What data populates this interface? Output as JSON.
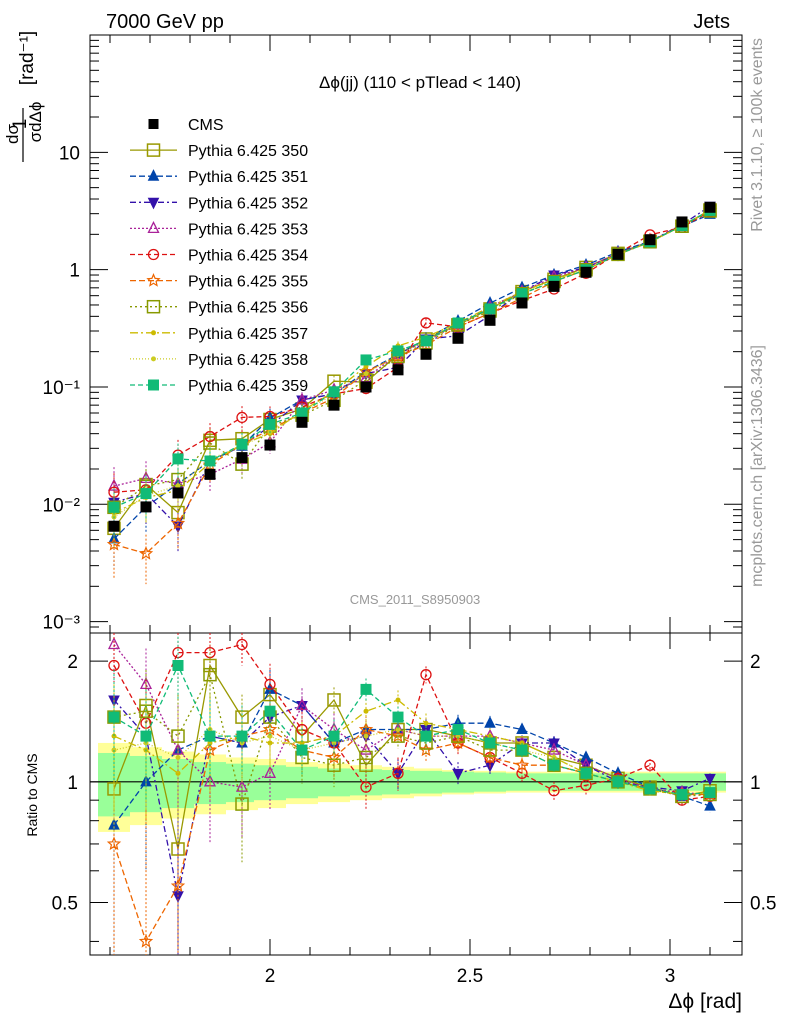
{
  "header": {
    "left": "7000 GeV pp",
    "right": "Jets"
  },
  "side_labels": {
    "rivet": "Rivet 3.1.10, ≥ 100k events",
    "mcplots": "mcplots.cern.ch [arXiv:1306.3436]"
  },
  "chart_data": {
    "type": "line",
    "title": "Δϕ(jj) (110 < pTlead <  140)",
    "analysis_label": "CMS_2011_S8950903",
    "xlabel": "Δϕ [rad]",
    "ylabel": "1/σ dσ/dΔϕ [rad⁻¹]",
    "ratio_ylabel": "Ratio to CMS",
    "xlim": [
      1.55,
      3.18
    ],
    "ylim_main": [
      0.0008,
      100
    ],
    "main_log_y": true,
    "ylim_ratio": [
      0.37,
      2.35
    ],
    "ratio_log_y": true,
    "x_ticks": [
      2,
      2.5,
      3
    ],
    "x_tick_labels": [
      "2",
      "2.5",
      "3"
    ],
    "main_y_ticks": [
      0.001,
      0.01,
      0.1,
      1,
      10
    ],
    "main_y_tick_labels": [
      "10⁻³",
      "10⁻²",
      "10⁻¹",
      "1",
      "10"
    ],
    "ratio_y_ticks": [
      0.5,
      1,
      2
    ],
    "ratio_y_tick_labels": [
      "0.5",
      "1",
      "2"
    ],
    "legend_position": "top-left",
    "x": [
      1.61,
      1.69,
      1.77,
      1.85,
      1.93,
      2.0,
      2.08,
      2.16,
      2.24,
      2.32,
      2.39,
      2.47,
      2.55,
      2.63,
      2.71,
      2.79,
      2.87,
      2.95,
      3.03,
      3.1
    ],
    "data": {
      "name": "CMS",
      "values": [
        0.0065,
        0.0095,
        0.0125,
        0.018,
        0.025,
        0.032,
        0.05,
        0.07,
        0.1,
        0.14,
        0.19,
        0.26,
        0.37,
        0.52,
        0.72,
        0.95,
        1.35,
        1.8,
        2.55,
        3.4
      ],
      "band_inner": [
        0.18,
        0.16,
        0.14,
        0.12,
        0.11,
        0.1,
        0.09,
        0.08,
        0.075,
        0.07,
        0.065,
        0.06,
        0.055,
        0.05,
        0.05,
        0.05,
        0.05,
        0.05,
        0.05,
        0.05
      ],
      "band_outer": [
        0.25,
        0.22,
        0.19,
        0.17,
        0.15,
        0.14,
        0.12,
        0.11,
        0.1,
        0.09,
        0.08,
        0.07,
        0.065,
        0.06,
        0.06,
        0.06,
        0.06,
        0.06,
        0.06,
        0.06
      ]
    },
    "series": [
      {
        "name": "Pythia 6.425 350",
        "color": "#999900",
        "dash": "",
        "marker": "square-open",
        "ratio": [
          0.96,
          1.55,
          0.68,
          1.95,
          1.45,
          1.65,
          1.3,
          1.6,
          1.1,
          1.35,
          1.35,
          1.3,
          1.25,
          1.25,
          1.15,
          1.1,
          1.02,
          0.97,
          0.92,
          0.95
        ],
        "err": [
          0.3,
          0.3,
          0.3,
          0.25,
          0.2,
          0.18,
          0.15,
          0.12,
          0.1,
          0.08,
          0.07,
          0.06,
          0.05,
          0.05,
          0.04,
          0.04,
          0.03,
          0.03,
          0.03,
          0.03
        ]
      },
      {
        "name": "Pythia 6.425 351",
        "color": "#0044aa",
        "dash": "6,3",
        "marker": "triangle-up",
        "ratio": [
          0.78,
          1.0,
          1.2,
          1.3,
          1.25,
          1.7,
          1.55,
          1.25,
          1.35,
          1.35,
          1.35,
          1.4,
          1.4,
          1.35,
          1.25,
          1.15,
          1.05,
          0.97,
          0.92,
          0.87
        ],
        "err": [
          0.45,
          0.4,
          0.35,
          0.3,
          0.25,
          0.2,
          0.16,
          0.13,
          0.11,
          0.09,
          0.08,
          0.07,
          0.06,
          0.05,
          0.05,
          0.04,
          0.04,
          0.03,
          0.03,
          0.03
        ]
      },
      {
        "name": "Pythia 6.425 352",
        "color": "#3311aa",
        "dash": "6,3,2,3",
        "marker": "triangle-down",
        "ratio": [
          1.6,
          1.3,
          0.52,
          1.3,
          1.25,
          1.45,
          1.55,
          1.25,
          1.3,
          1.05,
          1.35,
          1.05,
          1.1,
          1.25,
          1.25,
          1.1,
          1.0,
          0.97,
          0.95,
          1.02
        ],
        "err": [
          0.45,
          0.45,
          0.4,
          0.3,
          0.25,
          0.2,
          0.16,
          0.13,
          0.11,
          0.09,
          0.08,
          0.07,
          0.06,
          0.05,
          0.05,
          0.04,
          0.04,
          0.03,
          0.03,
          0.03
        ]
      },
      {
        "name": "Pythia 6.425 353",
        "color": "#aa2299",
        "dash": "2,2",
        "marker": "triangle-up-open",
        "ratio": [
          2.2,
          1.75,
          1.2,
          1.0,
          0.97,
          1.05,
          1.55,
          1.35,
          1.2,
          1.35,
          1.3,
          1.3,
          1.3,
          1.25,
          1.2,
          1.1,
          1.02,
          0.96,
          0.94,
          0.93
        ],
        "err": [
          0.45,
          0.4,
          0.35,
          0.3,
          0.25,
          0.2,
          0.16,
          0.13,
          0.11,
          0.09,
          0.08,
          0.07,
          0.06,
          0.05,
          0.05,
          0.04,
          0.04,
          0.03,
          0.03,
          0.03
        ]
      },
      {
        "name": "Pythia 6.425 354",
        "color": "#dd1111",
        "dash": "5,3",
        "marker": "circle-open",
        "ratio": [
          1.95,
          1.4,
          2.1,
          2.1,
          2.2,
          1.75,
          1.35,
          1.25,
          0.97,
          1.05,
          1.85,
          1.25,
          1.15,
          1.05,
          0.95,
          0.98,
          1.02,
          1.1,
          0.9,
          0.92
        ],
        "err": [
          0.45,
          0.4,
          0.35,
          0.3,
          0.25,
          0.22,
          0.18,
          0.15,
          0.12,
          0.1,
          0.09,
          0.08,
          0.07,
          0.06,
          0.05,
          0.05,
          0.04,
          0.04,
          0.03,
          0.03
        ]
      },
      {
        "name": "Pythia 6.425 355",
        "color": "#ee6600",
        "dash": "6,3",
        "marker": "star-open",
        "ratio": [
          0.7,
          0.4,
          0.55,
          1.2,
          1.3,
          1.35,
          1.2,
          1.15,
          1.35,
          1.3,
          1.2,
          1.25,
          1.15,
          1.1,
          1.1,
          1.05,
          1.0,
          0.96,
          0.93,
          0.93
        ],
        "err": [
          0.5,
          0.45,
          0.4,
          0.3,
          0.25,
          0.2,
          0.16,
          0.13,
          0.11,
          0.09,
          0.08,
          0.07,
          0.06,
          0.05,
          0.05,
          0.04,
          0.04,
          0.03,
          0.03,
          0.03
        ]
      },
      {
        "name": "Pythia 6.425 356",
        "color": "#889900",
        "dash": "2,3",
        "marker": "square-open",
        "ratio": [
          1.45,
          1.5,
          1.3,
          1.85,
          0.88,
          1.45,
          1.15,
          1.1,
          1.15,
          1.3,
          1.25,
          1.3,
          1.2,
          1.2,
          1.1,
          1.05,
          1.0,
          0.96,
          0.92,
          0.93
        ],
        "err": [
          0.45,
          0.4,
          0.35,
          0.3,
          0.25,
          0.2,
          0.16,
          0.13,
          0.11,
          0.09,
          0.08,
          0.07,
          0.06,
          0.05,
          0.05,
          0.04,
          0.04,
          0.03,
          0.03,
          0.03
        ]
      },
      {
        "name": "Pythia 6.425 357",
        "color": "#ccbb00",
        "dash": "8,3,2,3",
        "marker": "dot",
        "ratio": [
          1.3,
          1.2,
          1.05,
          1.25,
          1.3,
          1.25,
          1.25,
          1.3,
          1.5,
          1.6,
          1.4,
          1.35,
          1.3,
          1.25,
          1.15,
          1.05,
          1.0,
          0.95,
          0.93,
          0.94
        ],
        "err": [
          0.45,
          0.4,
          0.35,
          0.3,
          0.25,
          0.2,
          0.16,
          0.13,
          0.11,
          0.09,
          0.08,
          0.07,
          0.06,
          0.05,
          0.05,
          0.04,
          0.04,
          0.03,
          0.03,
          0.03
        ]
      },
      {
        "name": "Pythia 6.425 358",
        "color": "#cccc22",
        "dash": "1,2",
        "marker": "dot",
        "ratio": [
          1.2,
          1.25,
          1.15,
          1.35,
          1.25,
          1.3,
          1.2,
          1.25,
          1.3,
          1.35,
          1.3,
          1.3,
          1.25,
          1.2,
          1.15,
          1.05,
          1.0,
          0.96,
          0.93,
          0.94
        ],
        "err": [
          0.45,
          0.4,
          0.35,
          0.3,
          0.25,
          0.2,
          0.16,
          0.13,
          0.11,
          0.09,
          0.08,
          0.07,
          0.06,
          0.05,
          0.05,
          0.04,
          0.04,
          0.03,
          0.03,
          0.03
        ]
      },
      {
        "name": "Pythia 6.425 359",
        "color": "#11bb77",
        "dash": "5,3",
        "marker": "square",
        "ratio": [
          1.45,
          1.3,
          1.95,
          1.3,
          1.3,
          1.5,
          1.2,
          1.3,
          1.7,
          1.45,
          1.3,
          1.35,
          1.25,
          1.2,
          1.1,
          1.05,
          1.0,
          0.96,
          0.93,
          0.94
        ],
        "err": [
          0.45,
          0.4,
          0.35,
          0.3,
          0.25,
          0.2,
          0.16,
          0.13,
          0.11,
          0.09,
          0.08,
          0.07,
          0.06,
          0.05,
          0.05,
          0.04,
          0.04,
          0.03,
          0.03,
          0.03
        ]
      }
    ]
  }
}
